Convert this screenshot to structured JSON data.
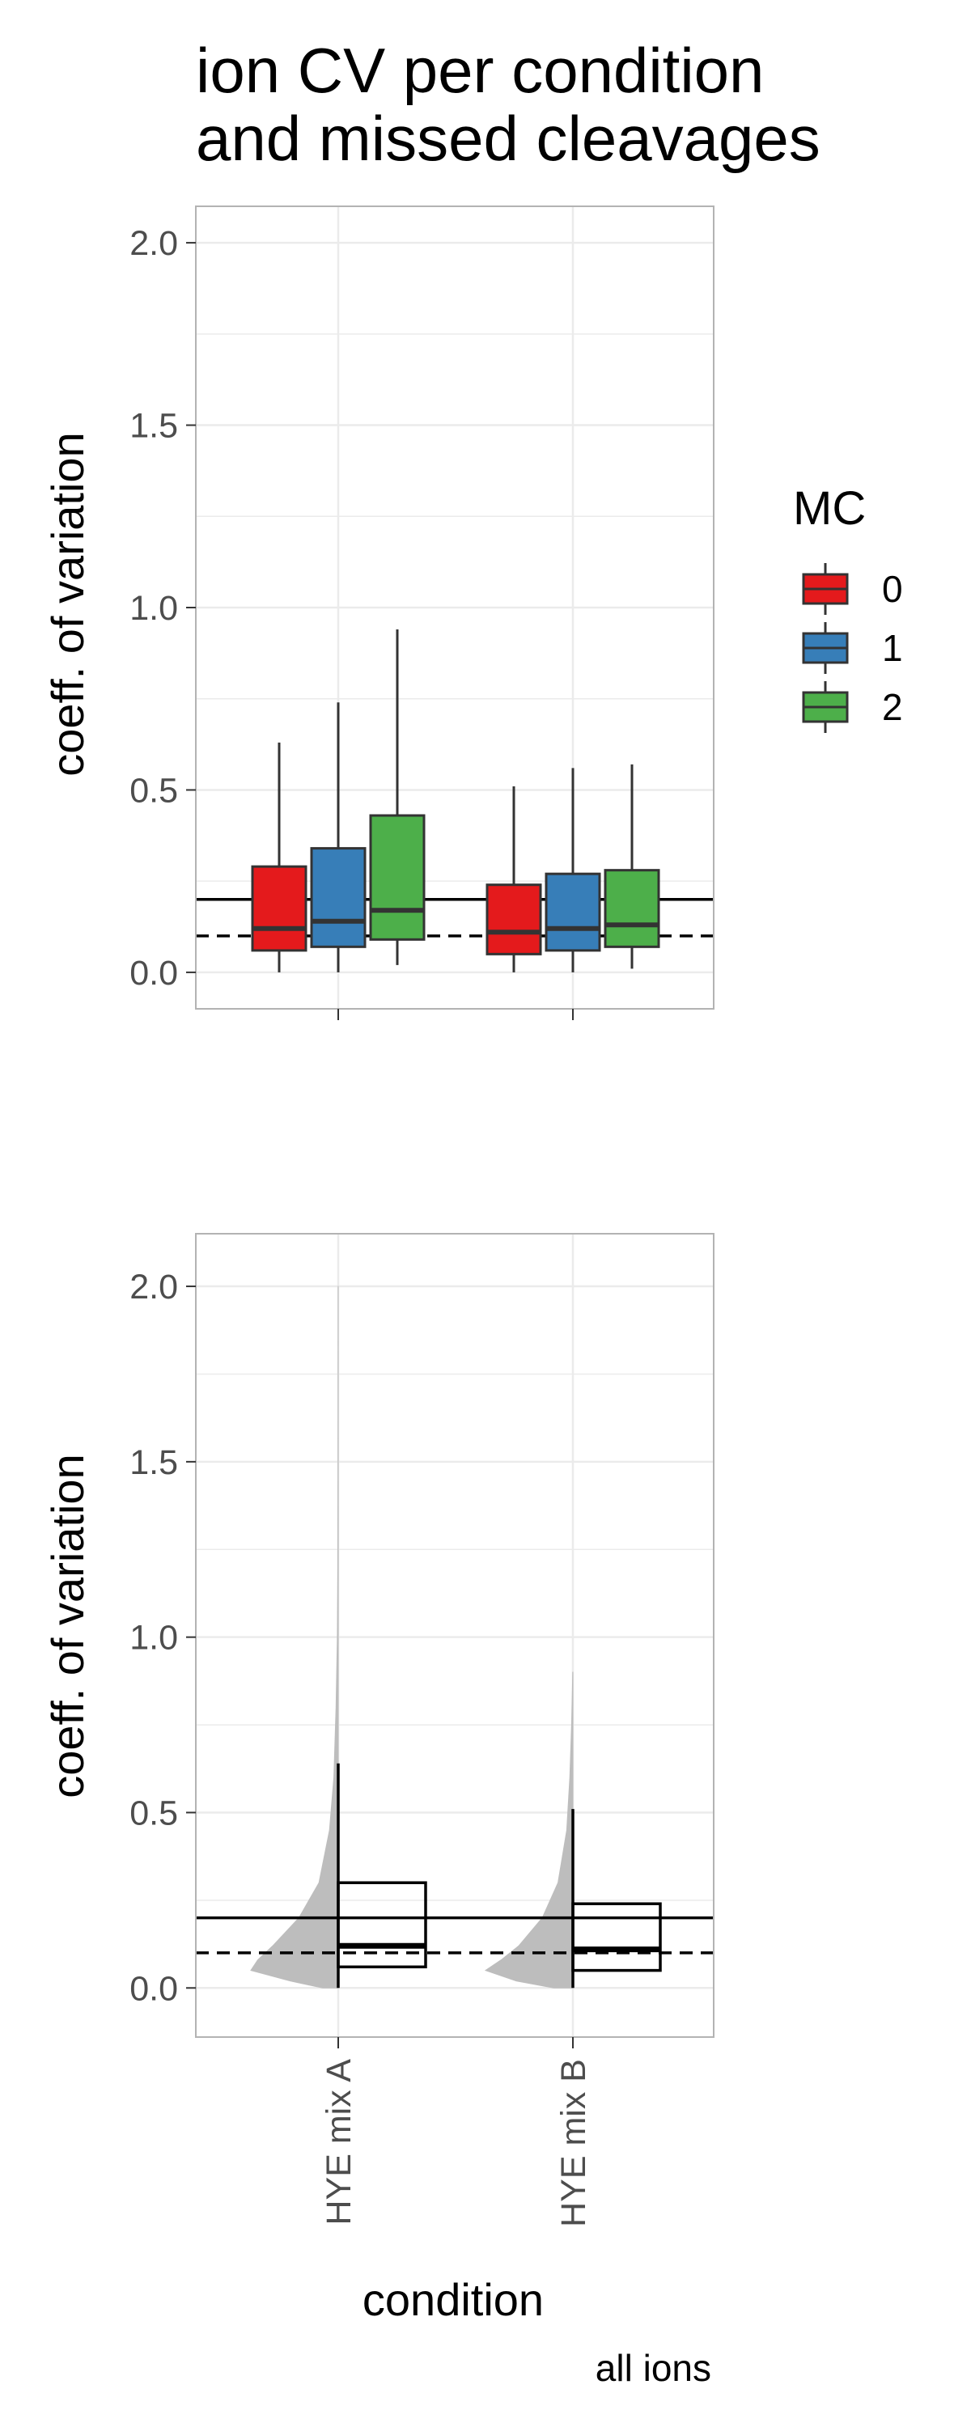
{
  "title_lines": [
    "ion CV per condition",
    "and missed cleavages"
  ],
  "caption": "all ions",
  "colors": {
    "mc0": "#e41a1c",
    "mc1": "#377eb8",
    "mc2": "#4daf4a",
    "violin": "#bdbdbd",
    "grid": "#ebebeb",
    "panel_border": "#b3b3b3"
  },
  "chart_data": [
    {
      "type": "box",
      "panel": "top",
      "ylabel": "coeff. of variation",
      "xlabel": "",
      "ylim": [
        -0.1,
        2.1
      ],
      "yticks": [
        0.0,
        0.5,
        1.0,
        1.5,
        2.0
      ],
      "ytick_labels": [
        "0.0",
        "0.5",
        "1.0",
        "1.5",
        "2.0"
      ],
      "categories": [
        "HYE mix A",
        "HYE mix B"
      ],
      "x_labels_shown": false,
      "grid": true,
      "legend": {
        "title": "MC",
        "position": "right",
        "entries": [
          "0",
          "1",
          "2"
        ]
      },
      "reference_lines": [
        {
          "y": 0.2,
          "style": "solid"
        },
        {
          "y": 0.1,
          "style": "dashed"
        }
      ],
      "series": [
        {
          "name": "0",
          "color": "#e41a1c",
          "boxes": [
            {
              "category": "HYE mix A",
              "min": 0.0,
              "q1": 0.06,
              "median": 0.12,
              "q3": 0.29,
              "max": 0.63
            },
            {
              "category": "HYE mix B",
              "min": 0.0,
              "q1": 0.05,
              "median": 0.11,
              "q3": 0.24,
              "max": 0.51
            }
          ]
        },
        {
          "name": "1",
          "color": "#377eb8",
          "boxes": [
            {
              "category": "HYE mix A",
              "min": 0.0,
              "q1": 0.07,
              "median": 0.14,
              "q3": 0.34,
              "max": 0.74
            },
            {
              "category": "HYE mix B",
              "min": 0.0,
              "q1": 0.06,
              "median": 0.12,
              "q3": 0.27,
              "max": 0.56
            }
          ]
        },
        {
          "name": "2",
          "color": "#4daf4a",
          "boxes": [
            {
              "category": "HYE mix A",
              "min": 0.02,
              "q1": 0.09,
              "median": 0.17,
              "q3": 0.43,
              "max": 0.94
            },
            {
              "category": "HYE mix B",
              "min": 0.01,
              "q1": 0.07,
              "median": 0.13,
              "q3": 0.28,
              "max": 0.57
            }
          ]
        }
      ]
    },
    {
      "type": "violin+box",
      "panel": "bottom",
      "ylabel": "coeff. of variation",
      "xlabel": "condition",
      "ylim": [
        -0.14,
        2.15
      ],
      "yticks": [
        0.0,
        0.5,
        1.0,
        1.5,
        2.0
      ],
      "ytick_labels": [
        "0.0",
        "0.5",
        "1.0",
        "1.5",
        "2.0"
      ],
      "categories": [
        "HYE mix A",
        "HYE mix B"
      ],
      "grid": true,
      "reference_lines": [
        {
          "y": 0.2,
          "style": "solid"
        },
        {
          "y": 0.1,
          "style": "dashed"
        }
      ],
      "boxes": [
        {
          "category": "HYE mix A",
          "min": 0.0,
          "q1": 0.06,
          "median": 0.12,
          "q3": 0.3,
          "max": 0.64
        },
        {
          "category": "HYE mix B",
          "min": 0.0,
          "q1": 0.05,
          "median": 0.11,
          "q3": 0.24,
          "max": 0.51
        }
      ],
      "violins": [
        {
          "category": "HYE mix A",
          "y_max": 2.0,
          "density": [
            [
              0.0,
              0.18
            ],
            [
              0.02,
              0.55
            ],
            [
              0.05,
              1.0
            ],
            [
              0.08,
              0.92
            ],
            [
              0.12,
              0.75
            ],
            [
              0.2,
              0.45
            ],
            [
              0.3,
              0.22
            ],
            [
              0.45,
              0.1
            ],
            [
              0.6,
              0.05
            ],
            [
              0.8,
              0.025
            ],
            [
              1.0,
              0.01
            ],
            [
              1.2,
              0.005
            ],
            [
              1.6,
              0.002
            ],
            [
              2.0,
              0.001
            ]
          ]
        },
        {
          "category": "HYE mix B",
          "y_max": 0.9,
          "density": [
            [
              0.0,
              0.22
            ],
            [
              0.02,
              0.65
            ],
            [
              0.05,
              1.0
            ],
            [
              0.08,
              0.82
            ],
            [
              0.12,
              0.62
            ],
            [
              0.2,
              0.35
            ],
            [
              0.3,
              0.17
            ],
            [
              0.45,
              0.07
            ],
            [
              0.6,
              0.035
            ],
            [
              0.75,
              0.015
            ],
            [
              0.9,
              0.002
            ]
          ]
        }
      ]
    }
  ]
}
